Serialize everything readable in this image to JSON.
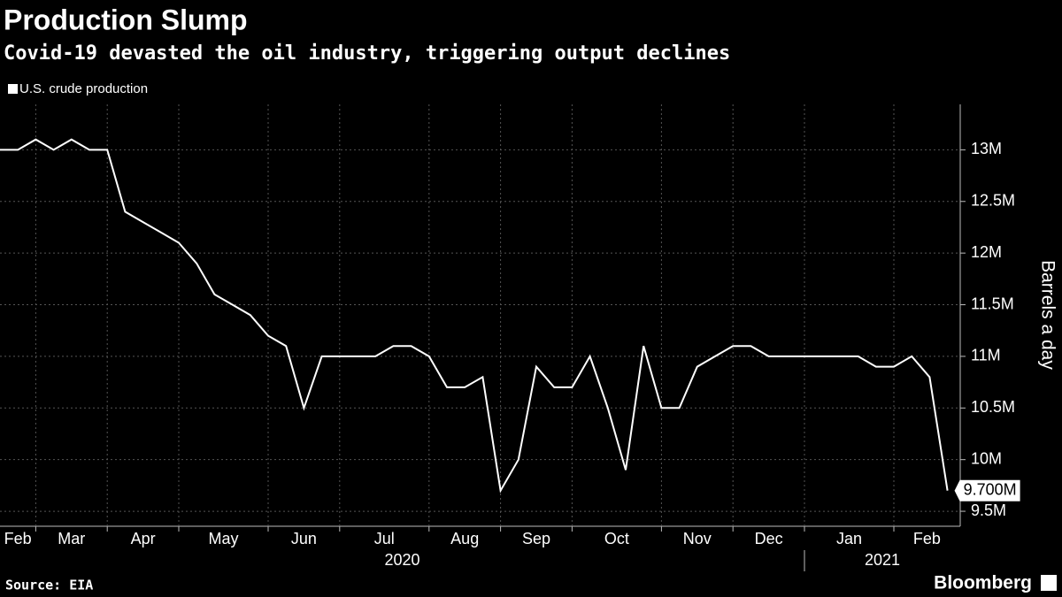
{
  "chart_data": {
    "type": "line",
    "title": "Production Slump",
    "subtitle": "Covid-19 devasted the oil industry, triggering output declines",
    "y_label": "Barrels a day",
    "source": "Source: EIA",
    "brand": "Bloomberg",
    "months": [
      "Feb",
      "Mar",
      "Apr",
      "May",
      "Jun",
      "Jul",
      "Aug",
      "Sep",
      "Oct",
      "Nov",
      "Dec",
      "Jan",
      "Feb"
    ],
    "years": [
      "2020",
      "2021"
    ],
    "series": [
      {
        "name": "U.S. crude production",
        "color": "#ffffff",
        "values": [
          13000000,
          13000000,
          13100000,
          13000000,
          13100000,
          13000000,
          13000000,
          12400000,
          12300000,
          12200000,
          12100000,
          11900000,
          11600000,
          11500000,
          11400000,
          11200000,
          11100000,
          10500000,
          11000000,
          11000000,
          11000000,
          11000000,
          11100000,
          11100000,
          11000000,
          10700000,
          10700000,
          10800000,
          9700000,
          10000000,
          10900000,
          10700000,
          10700000,
          11000000,
          10500000,
          9900000,
          11100000,
          10500000,
          10500000,
          10900000,
          11000000,
          11100000,
          11100000,
          11000000,
          11000000,
          11000000,
          11000000,
          11000000,
          11000000,
          10900000,
          10900000,
          11000000,
          10800000,
          9700000
        ],
        "value_labels": [
          null,
          null,
          null,
          null,
          null,
          null,
          null,
          null,
          null,
          null,
          null,
          null,
          null,
          null,
          null,
          null,
          null,
          null,
          null,
          null,
          null,
          null,
          null,
          null,
          null,
          null,
          null,
          null,
          null,
          null,
          null,
          null,
          null,
          null,
          null,
          null,
          null,
          null,
          null,
          null,
          null,
          null,
          null,
          null,
          null,
          null,
          null,
          null,
          null,
          null,
          null,
          null,
          null,
          "9.700M"
        ]
      }
    ],
    "ylim": [
      9355000,
      13440000
    ],
    "yticks": [
      {
        "value": 9500000,
        "label": "9.5M"
      },
      {
        "value": 10000000,
        "label": "10M"
      },
      {
        "value": 10500000,
        "label": "10.5M"
      },
      {
        "value": 11000000,
        "label": "11M"
      },
      {
        "value": 11500000,
        "label": "11.5M"
      },
      {
        "value": 12000000,
        "label": "12M"
      },
      {
        "value": 12500000,
        "label": "12.5M"
      },
      {
        "value": 13000000,
        "label": "13M"
      }
    ],
    "grid": true
  }
}
